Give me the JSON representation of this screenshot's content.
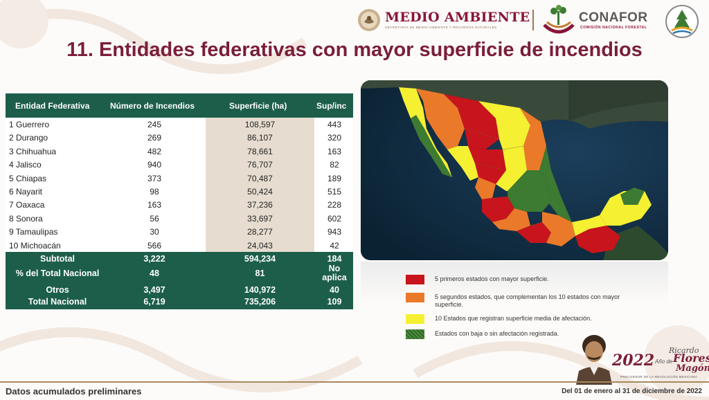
{
  "header": {
    "semarnat_name": "MEDIO AMBIENTE",
    "semarnat_sub": "SECRETARÍA DE MEDIO AMBIENTE Y RECURSOS NATURALES",
    "conafor_name": "CONAFOR",
    "conafor_sub": "COMISIÓN NACIONAL FORESTAL"
  },
  "title": "11. Entidades federativas con mayor superficie de incendios",
  "table": {
    "headers": [
      "Entidad Federativa",
      "Número de Incendios",
      "Superficie (ha)",
      "Sup/inc"
    ],
    "rows": [
      {
        "entidad": "1  Guerrero",
        "incendios": "245",
        "superficie": "108,597",
        "supinc": "443"
      },
      {
        "entidad": "2  Durango",
        "incendios": "269",
        "superficie": "86,107",
        "supinc": "320"
      },
      {
        "entidad": "3  Chihuahua",
        "incendios": "482",
        "superficie": "78,661",
        "supinc": "163"
      },
      {
        "entidad": "4  Jalisco",
        "incendios": "940",
        "superficie": "76,707",
        "supinc": "82"
      },
      {
        "entidad": "5  Chiapas",
        "incendios": "373",
        "superficie": "70,487",
        "supinc": "189"
      },
      {
        "entidad": "6  Nayarit",
        "incendios": "98",
        "superficie": "50,424",
        "supinc": "515"
      },
      {
        "entidad": "7  Oaxaca",
        "incendios": "163",
        "superficie": "37,236",
        "supinc": "228"
      },
      {
        "entidad": "8  Sonora",
        "incendios": "56",
        "superficie": "33,697",
        "supinc": "602"
      },
      {
        "entidad": "9  Tamaulipas",
        "incendios": "30",
        "superficie": "28,277",
        "supinc": "943"
      },
      {
        "entidad": "10 Michoacán",
        "incendios": "566",
        "superficie": "24,043",
        "supinc": "42"
      }
    ],
    "subtotal": {
      "label": "Subtotal",
      "incendios": "3,222",
      "superficie": "594,234",
      "supinc": "184"
    },
    "porcentaje": {
      "label": "% del Total Nacional",
      "incendios": "48",
      "superficie": "81",
      "supinc_1": "No",
      "supinc_2": "aplica"
    },
    "otros": {
      "label": "Otros",
      "incendios": "3,497",
      "superficie": "140,972",
      "supinc": "40"
    },
    "total": {
      "label": "Total Nacional",
      "incendios": "6,719",
      "superficie": "735,206",
      "supinc": "109"
    }
  },
  "legend": [
    {
      "color": "#c8141c",
      "text": "5 primeros estados con mayor superficie."
    },
    {
      "color": "#ea7a2a",
      "text": "5 segundos estados, que complementan los 10 estados con mayor superficie."
    },
    {
      "color": "#f5f032",
      "text": "10 Estados que registran superficie media de afectación."
    },
    {
      "color": "#3d7a32",
      "text": "Estados con baja o sin afectación registrada."
    }
  ],
  "badge": {
    "year": "2022",
    "anio_de": "Año de",
    "name_1": "Ricardo",
    "name_2": "Flores",
    "name_3": "Magón",
    "tagline": "PRECURSOR DE LA REVOLUCIÓN MEXICANA"
  },
  "footer": {
    "left": "Datos acumulados preliminares",
    "right": "Del 01 de enero al 31 de diciembre de 2022"
  }
}
